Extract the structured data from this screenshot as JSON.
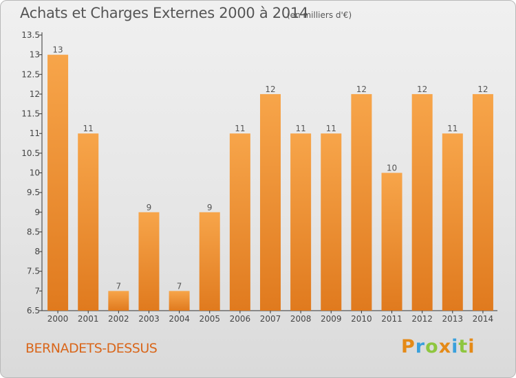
{
  "title": "Achats et Charges Externes 2000 à 2014",
  "subtitle": "(en milliers d'€)",
  "commune": "BERNADETS-DESSUS",
  "logo": {
    "letters": [
      {
        "ch": "P",
        "color": "#e58a17"
      },
      {
        "ch": "r",
        "color": "#3aa0dc"
      },
      {
        "ch": "o",
        "color": "#8ec63f"
      },
      {
        "ch": "x",
        "color": "#e58a17"
      },
      {
        "ch": "i",
        "color": "#3aa0dc"
      },
      {
        "ch": "t",
        "color": "#8ec63f"
      },
      {
        "ch": "i",
        "color": "#e58a17"
      }
    ]
  },
  "colors": {
    "bar_light": "#f7a54a",
    "bar_dark": "#e07a1e",
    "text": "#555555",
    "commune": "#d9661a"
  },
  "chart_data": {
    "type": "bar",
    "categories": [
      "2000",
      "2001",
      "2002",
      "2003",
      "2004",
      "2005",
      "2006",
      "2007",
      "2008",
      "2009",
      "2010",
      "2011",
      "2012",
      "2013",
      "2014"
    ],
    "values": [
      13,
      11,
      7,
      9,
      7,
      9,
      11,
      12,
      11,
      11,
      12,
      10,
      12,
      11,
      12
    ],
    "ylim": [
      6.5,
      13.5
    ],
    "yticks": [
      "6.5",
      "7",
      "7.5",
      "8",
      "8.5",
      "9",
      "9.5",
      "10",
      "10.5",
      "11",
      "11.5",
      "12",
      "12.5",
      "13",
      "13.5"
    ],
    "grid": false
  }
}
